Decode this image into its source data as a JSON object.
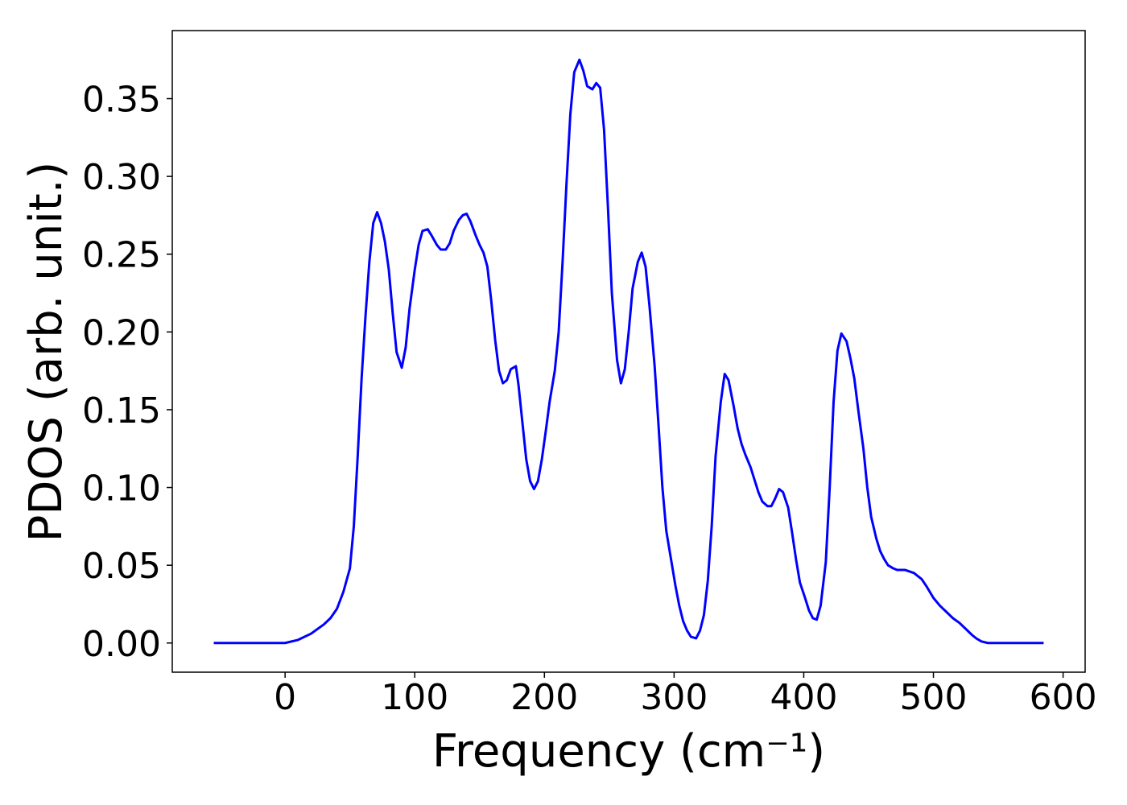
{
  "chart_data": {
    "type": "line",
    "x_label": "Frequency (cm⁻¹)",
    "y_label": "PDOS (arb. unit.)",
    "x": [
      -55,
      -10,
      0,
      10,
      20,
      30,
      35,
      40,
      45,
      50,
      53,
      56,
      59,
      62,
      65,
      68,
      71,
      74,
      77,
      80,
      83,
      86,
      90,
      93,
      96,
      100,
      103,
      106,
      110,
      113,
      117,
      120,
      124,
      127,
      130,
      134,
      137,
      140,
      143,
      147,
      150,
      153,
      156,
      159,
      162,
      165,
      168,
      171,
      174,
      178,
      180,
      183,
      186,
      189,
      192,
      195,
      198,
      201,
      204,
      208,
      211,
      214,
      217,
      220,
      223,
      227,
      230,
      233,
      237,
      240,
      243,
      246,
      249,
      252,
      256,
      259,
      262,
      265,
      268,
      272,
      275,
      278,
      281,
      285,
      288,
      291,
      294,
      298,
      301,
      304,
      307,
      310,
      313,
      317,
      320,
      323,
      326,
      329,
      332,
      336,
      339,
      342,
      346,
      349,
      352,
      355,
      359,
      362,
      365,
      368,
      372,
      375,
      378,
      381,
      384,
      388,
      391,
      394,
      397,
      401,
      404,
      407,
      410,
      413,
      417,
      420,
      423,
      426,
      429,
      433,
      436,
      439,
      442,
      446,
      449,
      452,
      456,
      459,
      462,
      465,
      469,
      472,
      478,
      485,
      491,
      495,
      500,
      505,
      510,
      515,
      520,
      525,
      530,
      533,
      537,
      542,
      585
    ],
    "series": [
      {
        "color": "#0000ff",
        "values": [
          0,
          0,
          0,
          0.002,
          0.006,
          0.012,
          0.016,
          0.022,
          0.033,
          0.048,
          0.075,
          0.12,
          0.17,
          0.21,
          0.245,
          0.27,
          0.277,
          0.27,
          0.258,
          0.24,
          0.212,
          0.187,
          0.177,
          0.19,
          0.215,
          0.24,
          0.256,
          0.265,
          0.266,
          0.262,
          0.256,
          0.253,
          0.253,
          0.257,
          0.265,
          0.272,
          0.275,
          0.276,
          0.271,
          0.262,
          0.256,
          0.251,
          0.242,
          0.22,
          0.195,
          0.175,
          0.167,
          0.169,
          0.176,
          0.178,
          0.166,
          0.142,
          0.118,
          0.104,
          0.099,
          0.104,
          0.118,
          0.136,
          0.155,
          0.175,
          0.2,
          0.245,
          0.295,
          0.34,
          0.367,
          0.375,
          0.368,
          0.358,
          0.356,
          0.36,
          0.357,
          0.33,
          0.28,
          0.225,
          0.182,
          0.167,
          0.176,
          0.2,
          0.228,
          0.245,
          0.251,
          0.242,
          0.217,
          0.178,
          0.14,
          0.1,
          0.072,
          0.052,
          0.037,
          0.024,
          0.014,
          0.008,
          0.004,
          0.003,
          0.008,
          0.018,
          0.04,
          0.075,
          0.12,
          0.155,
          0.173,
          0.169,
          0.152,
          0.138,
          0.128,
          0.121,
          0.113,
          0.105,
          0.097,
          0.091,
          0.088,
          0.088,
          0.093,
          0.099,
          0.097,
          0.087,
          0.071,
          0.054,
          0.039,
          0.029,
          0.021,
          0.016,
          0.015,
          0.024,
          0.052,
          0.1,
          0.155,
          0.188,
          0.199,
          0.194,
          0.183,
          0.17,
          0.15,
          0.125,
          0.1,
          0.081,
          0.067,
          0.059,
          0.054,
          0.05,
          0.048,
          0.047,
          0.047,
          0.045,
          0.041,
          0.036,
          0.029,
          0.024,
          0.02,
          0.016,
          0.013,
          0.009,
          0.005,
          0.003,
          0.001,
          0,
          0
        ]
      }
    ],
    "xlim": [
      -87,
      617
    ],
    "xticks": [
      0,
      100,
      200,
      300,
      400,
      500,
      600
    ],
    "ylim": [
      -0.01875,
      0.39375
    ],
    "yticks": [
      {
        "value": 0,
        "label": "0.00"
      },
      0.05,
      {
        "value": 0.1,
        "label": "0.10"
      },
      0.15,
      {
        "value": 0.2,
        "label": "0.20"
      },
      0.25,
      {
        "value": 0.3,
        "label": "0.30"
      },
      0.35
    ]
  }
}
